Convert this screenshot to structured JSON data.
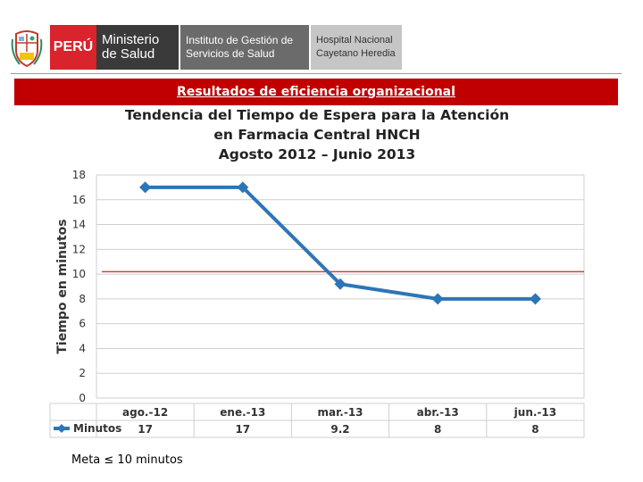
{
  "header": {
    "peru_label": "PERÚ",
    "ministry_line1": "Ministerio",
    "ministry_line2": "de Salud",
    "institute_line1": "Instituto de Gestión de",
    "institute_line2": "Servicios de Salud",
    "hospital_line1": "Hospital Nacional",
    "hospital_line2": "Cayetano Heredia"
  },
  "banner": {
    "text": "Resultados de  eficiencia organizacional"
  },
  "meta_text": "Meta  ≤ 10 minutos",
  "colors": {
    "banner": "#c00000",
    "series": "#2e75b6",
    "target_line": "#d04040"
  },
  "chart_data": {
    "type": "line",
    "title_lines": [
      "Tendencia del Tiempo de Espera para la Atención",
      "en Farmacia Central HNCH",
      "Agosto 2012 – Junio  2013"
    ],
    "ylabel": "Tiempo en minutos",
    "xlabel": "",
    "ylim": [
      0,
      18
    ],
    "yticks": [
      0,
      2,
      4,
      6,
      8,
      10,
      12,
      14,
      16,
      18
    ],
    "grid": true,
    "categories": [
      "ago.-12",
      "ene.-13",
      "mar.-13",
      "abr.-13",
      "jun.-13"
    ],
    "series": [
      {
        "name": "Minutos",
        "values": [
          17,
          17,
          9.2,
          8,
          8
        ],
        "labels": [
          "17",
          "17",
          "9.2",
          "8",
          "8"
        ]
      }
    ],
    "target": {
      "value": 10.2
    },
    "legend": "table-left"
  }
}
